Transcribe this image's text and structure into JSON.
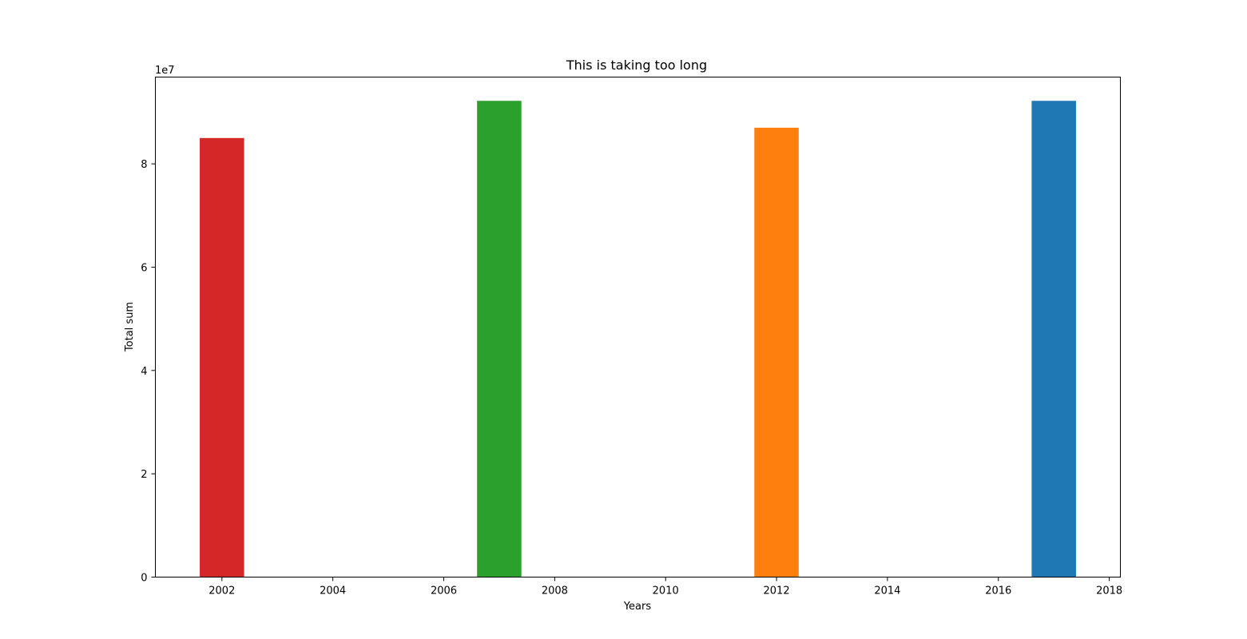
{
  "chart_data": {
    "type": "bar",
    "title": "This is taking too long",
    "xlabel": "Years",
    "ylabel": "Total sum",
    "y_multiplier_label": "1e7",
    "bars": [
      {
        "x": 2002,
        "value": 85000000,
        "color": "#d62728"
      },
      {
        "x": 2007,
        "value": 92200000,
        "color": "#2ca02c"
      },
      {
        "x": 2012,
        "value": 87000000,
        "color": "#ff7f0e"
      },
      {
        "x": 2017,
        "value": 92200000,
        "color": "#1f77b4"
      }
    ],
    "bar_width_years": 0.8,
    "xlim": [
      2000.8,
      2018.2
    ],
    "ylim": [
      0,
      96800000
    ],
    "x_ticks": [
      2002,
      2004,
      2006,
      2008,
      2010,
      2012,
      2014,
      2016,
      2018
    ],
    "y_ticks": [
      0,
      20000000,
      40000000,
      60000000,
      80000000
    ],
    "y_tick_labels": [
      "0",
      "2",
      "4",
      "6",
      "8"
    ],
    "grid": false,
    "legend": "none"
  }
}
